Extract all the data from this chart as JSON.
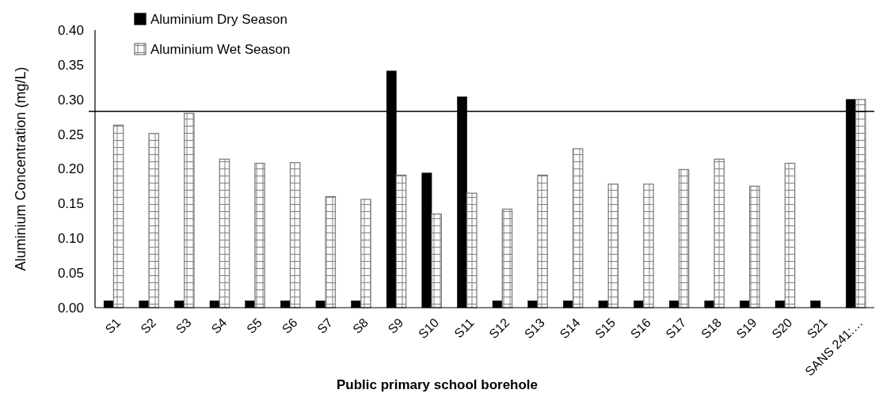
{
  "chart_data": {
    "type": "bar",
    "xlabel": "Public primary school borehole",
    "ylabel": "Aluminium Concentration (mg/L)",
    "categories": [
      "S1",
      "S2",
      "S3",
      "S4",
      "S5",
      "S6",
      "S7",
      "S8",
      "S9",
      "S10",
      "S11",
      "S12",
      "S13",
      "S14",
      "S15",
      "S16",
      "S17",
      "S18",
      "S19",
      "S20",
      "S21",
      "SANS 241:…"
    ],
    "series": [
      {
        "name": "Aluminium Dry Season",
        "color": "#000000",
        "values": [
          0.01,
          0.01,
          0.01,
          0.01,
          0.01,
          0.01,
          0.01,
          0.01,
          0.341,
          0.194,
          0.304,
          0.01,
          0.01,
          0.01,
          0.01,
          0.01,
          0.01,
          0.01,
          0.01,
          0.01,
          0.01,
          0.3
        ]
      },
      {
        "name": "Aluminium Wet Season",
        "color": "#7f7f7f",
        "values": [
          0.263,
          0.251,
          0.28,
          0.214,
          0.208,
          0.209,
          0.16,
          0.156,
          0.191,
          0.135,
          0.165,
          0.142,
          0.191,
          0.229,
          0.178,
          0.178,
          0.199,
          0.214,
          0.175,
          0.208,
          null,
          0.3
        ]
      }
    ],
    "ylim": [
      0,
      0.4
    ],
    "yticks": [
      {
        "value": 0,
        "label": "0.00"
      },
      {
        "value": 0.05,
        "label": "0.05"
      },
      {
        "value": 0.1,
        "label": "0.10"
      },
      {
        "value": 0.15,
        "label": "0.15"
      },
      {
        "value": 0.2,
        "label": "0.20"
      },
      {
        "value": 0.25,
        "label": "0.25"
      },
      {
        "value": 0.3,
        "label": "0.30"
      },
      {
        "value": 0.35,
        "label": "0.35"
      },
      {
        "value": 0.4,
        "label": "0.40"
      }
    ],
    "ref_lines": [
      {
        "axis": "y",
        "value": 0.283,
        "color": "#000000"
      }
    ],
    "legend": "top left"
  }
}
